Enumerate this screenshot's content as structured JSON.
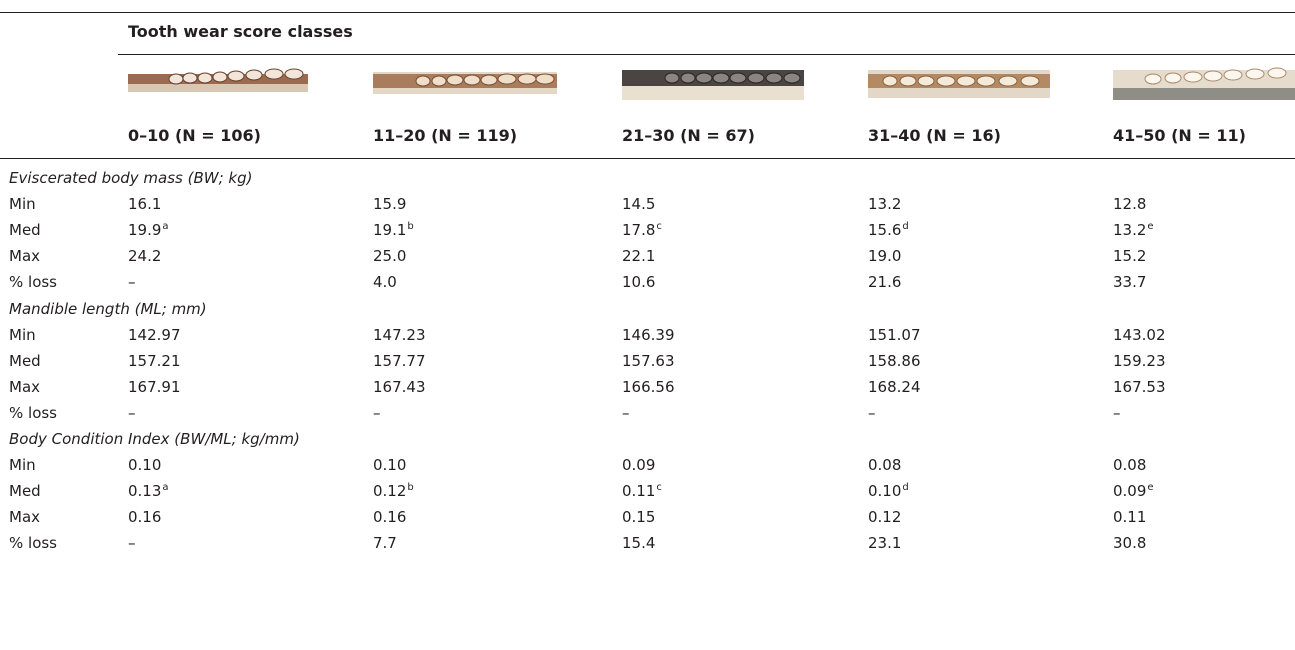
{
  "table": {
    "super_header": "Tooth wear score classes",
    "columns": [
      {
        "label": "0–10 (N = 106)"
      },
      {
        "label": "11–20 (N = 119)"
      },
      {
        "label": "21–30 (N = 67)"
      },
      {
        "label": "31–40 (N = 16)"
      },
      {
        "label": "41–50 (N = 11)"
      }
    ],
    "sections": [
      {
        "title": "Eviscerated body mass (BW; kg)",
        "rows": [
          {
            "label": "Min",
            "cells": [
              {
                "v": "16.1",
                "s": ""
              },
              {
                "v": "15.9",
                "s": ""
              },
              {
                "v": "14.5",
                "s": ""
              },
              {
                "v": "13.2",
                "s": ""
              },
              {
                "v": "12.8",
                "s": ""
              }
            ]
          },
          {
            "label": "Med",
            "cells": [
              {
                "v": "19.9",
                "s": "a"
              },
              {
                "v": "19.1",
                "s": "b"
              },
              {
                "v": "17.8",
                "s": "c"
              },
              {
                "v": "15.6",
                "s": "d"
              },
              {
                "v": "13.2",
                "s": "e"
              }
            ]
          },
          {
            "label": "Max",
            "cells": [
              {
                "v": "24.2",
                "s": ""
              },
              {
                "v": "25.0",
                "s": ""
              },
              {
                "v": "22.1",
                "s": ""
              },
              {
                "v": "19.0",
                "s": ""
              },
              {
                "v": "15.2",
                "s": ""
              }
            ]
          },
          {
            "label": "% loss",
            "cells": [
              {
                "v": "–",
                "s": ""
              },
              {
                "v": "4.0",
                "s": ""
              },
              {
                "v": "10.6",
                "s": ""
              },
              {
                "v": "21.6",
                "s": ""
              },
              {
                "v": "33.7",
                "s": ""
              }
            ]
          }
        ]
      },
      {
        "title": "Mandible length (ML; mm)",
        "rows": [
          {
            "label": "Min",
            "cells": [
              {
                "v": "142.97",
                "s": ""
              },
              {
                "v": "147.23",
                "s": ""
              },
              {
                "v": "146.39",
                "s": ""
              },
              {
                "v": "151.07",
                "s": ""
              },
              {
                "v": "143.02",
                "s": ""
              }
            ]
          },
          {
            "label": "Med",
            "cells": [
              {
                "v": "157.21",
                "s": ""
              },
              {
                "v": "157.77",
                "s": ""
              },
              {
                "v": "157.63",
                "s": ""
              },
              {
                "v": "158.86",
                "s": ""
              },
              {
                "v": "159.23",
                "s": ""
              }
            ]
          },
          {
            "label": "Max",
            "cells": [
              {
                "v": "167.91",
                "s": ""
              },
              {
                "v": "167.43",
                "s": ""
              },
              {
                "v": "166.56",
                "s": ""
              },
              {
                "v": "168.24",
                "s": ""
              },
              {
                "v": "167.53",
                "s": ""
              }
            ]
          },
          {
            "label": "% loss",
            "cells": [
              {
                "v": "–",
                "s": ""
              },
              {
                "v": "–",
                "s": ""
              },
              {
                "v": "–",
                "s": ""
              },
              {
                "v": "–",
                "s": ""
              },
              {
                "v": "–",
                "s": ""
              }
            ]
          }
        ]
      },
      {
        "title": "Body Condition Index (BW/ML; kg/mm)",
        "rows": [
          {
            "label": "Min",
            "cells": [
              {
                "v": "0.10",
                "s": ""
              },
              {
                "v": "0.10",
                "s": ""
              },
              {
                "v": "0.09",
                "s": ""
              },
              {
                "v": "0.08",
                "s": ""
              },
              {
                "v": "0.08",
                "s": ""
              }
            ]
          },
          {
            "label": "Med",
            "cells": [
              {
                "v": "0.13",
                "s": "a"
              },
              {
                "v": "0.12",
                "s": "b"
              },
              {
                "v": "0.11",
                "s": "c"
              },
              {
                "v": "0.10",
                "s": "d"
              },
              {
                "v": "0.09",
                "s": "e"
              }
            ]
          },
          {
            "label": "Max",
            "cells": [
              {
                "v": "0.16",
                "s": ""
              },
              {
                "v": "0.16",
                "s": ""
              },
              {
                "v": "0.15",
                "s": ""
              },
              {
                "v": "0.12",
                "s": ""
              },
              {
                "v": "0.11",
                "s": ""
              }
            ]
          },
          {
            "label": "% loss",
            "cells": [
              {
                "v": "–",
                "s": ""
              },
              {
                "v": "7.7",
                "s": ""
              },
              {
                "v": "15.4",
                "s": ""
              },
              {
                "v": "23.1",
                "s": ""
              },
              {
                "v": "30.8",
                "s": ""
              }
            ]
          }
        ]
      }
    ]
  }
}
